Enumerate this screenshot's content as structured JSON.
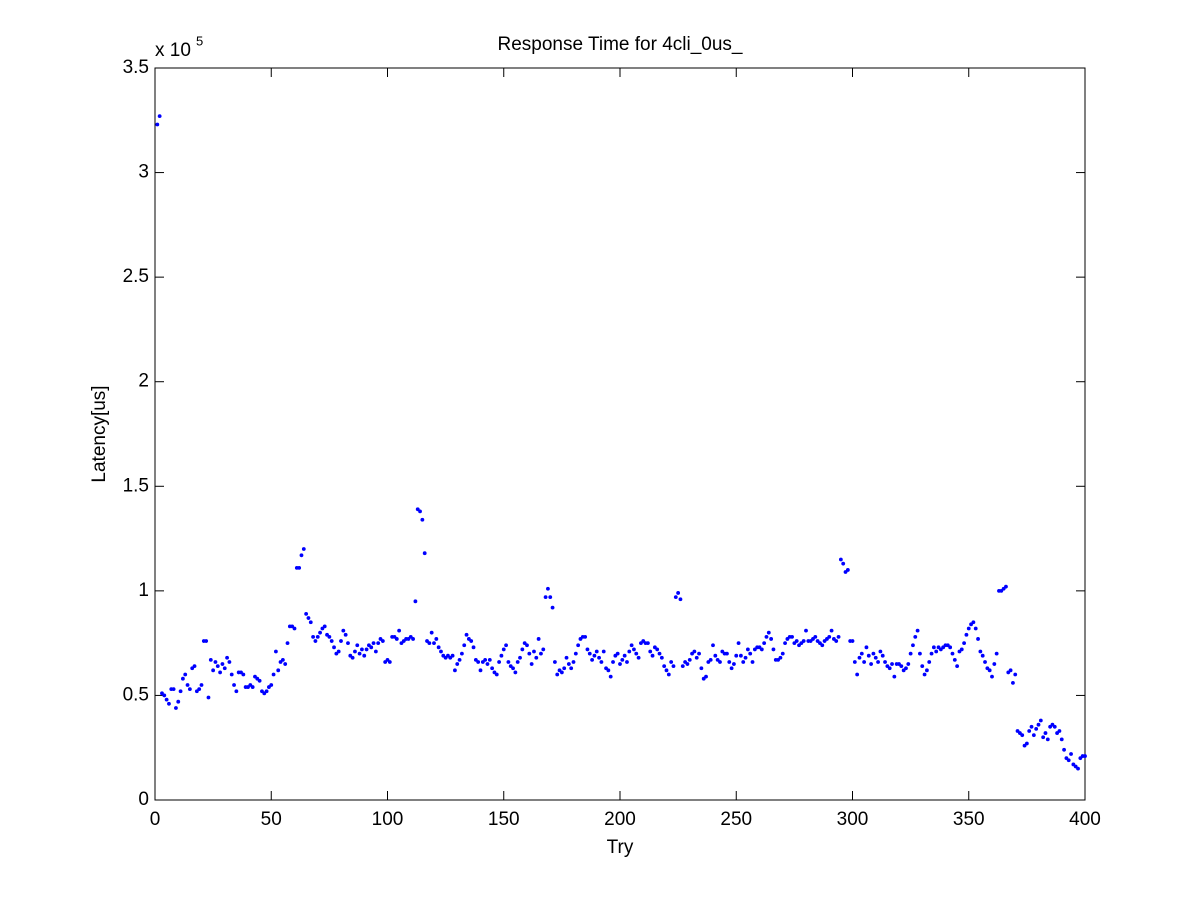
{
  "chart_data": {
    "type": "scatter",
    "title": "Response Time for 4cli_0us_",
    "x_label": "Try",
    "y_label": "Latency[us]",
    "y_scale_label": "x 10",
    "y_scale_exponent": "5",
    "xlim": [
      0,
      400
    ],
    "xticks": [
      0,
      50,
      100,
      150,
      200,
      250,
      300,
      350,
      400
    ],
    "ylim": [
      0,
      3.5
    ],
    "yticks": [
      0,
      0.5,
      1,
      1.5,
      2,
      2.5,
      3,
      3.5
    ],
    "grid": false,
    "series": [
      {
        "color": "#0000ff",
        "x": [
          1,
          2,
          3,
          4,
          5,
          6,
          7,
          8,
          9,
          10,
          11,
          12,
          13,
          14,
          15,
          16,
          17,
          18,
          19,
          20,
          21,
          22,
          23,
          24,
          25,
          26,
          27,
          28,
          29,
          30,
          31,
          32,
          33,
          34,
          35,
          36,
          37,
          38,
          39,
          40,
          41,
          42,
          43,
          44,
          45,
          46,
          47,
          48,
          49,
          50,
          51,
          52,
          53,
          54,
          55,
          56,
          57,
          58,
          59,
          60,
          61,
          62,
          63,
          64,
          65,
          66,
          67,
          68,
          69,
          70,
          71,
          72,
          73,
          74,
          75,
          76,
          77,
          78,
          79,
          80,
          81,
          82,
          83,
          84,
          85,
          86,
          87,
          88,
          89,
          90,
          91,
          92,
          93,
          94,
          95,
          96,
          97,
          98,
          99,
          100,
          101,
          102,
          103,
          104,
          105,
          106,
          107,
          108,
          109,
          110,
          111,
          112,
          113,
          114,
          115,
          116,
          117,
          118,
          119,
          120,
          121,
          122,
          123,
          124,
          125,
          126,
          127,
          128,
          129,
          130,
          131,
          132,
          133,
          134,
          135,
          136,
          137,
          138,
          139,
          140,
          141,
          142,
          143,
          144,
          145,
          146,
          147,
          148,
          149,
          150,
          151,
          152,
          153,
          154,
          155,
          156,
          157,
          158,
          159,
          160,
          161,
          162,
          163,
          164,
          165,
          166,
          167,
          168,
          169,
          170,
          171,
          172,
          173,
          174,
          175,
          176,
          177,
          178,
          179,
          180,
          181,
          182,
          183,
          184,
          185,
          186,
          187,
          188,
          189,
          190,
          191,
          192,
          193,
          194,
          195,
          196,
          197,
          198,
          199,
          200,
          201,
          202,
          203,
          204,
          205,
          206,
          207,
          208,
          209,
          210,
          211,
          212,
          213,
          214,
          215,
          216,
          217,
          218,
          219,
          220,
          221,
          222,
          223,
          224,
          225,
          226,
          227,
          228,
          229,
          230,
          231,
          232,
          233,
          234,
          235,
          236,
          237,
          238,
          239,
          240,
          241,
          242,
          243,
          244,
          245,
          246,
          247,
          248,
          249,
          250,
          251,
          252,
          253,
          254,
          255,
          256,
          257,
          258,
          259,
          260,
          261,
          262,
          263,
          264,
          265,
          266,
          267,
          268,
          269,
          270,
          271,
          272,
          273,
          274,
          275,
          276,
          277,
          278,
          279,
          280,
          281,
          282,
          283,
          284,
          285,
          286,
          287,
          288,
          289,
          290,
          291,
          292,
          293,
          294,
          295,
          296,
          297,
          298,
          299,
          300,
          301,
          302,
          303,
          304,
          305,
          306,
          307,
          308,
          309,
          310,
          311,
          312,
          313,
          314,
          315,
          316,
          317,
          318,
          319,
          320,
          321,
          322,
          323,
          324,
          325,
          326,
          327,
          328,
          329,
          330,
          331,
          332,
          333,
          334,
          335,
          336,
          337,
          338,
          339,
          340,
          341,
          342,
          343,
          344,
          345,
          346,
          347,
          348,
          349,
          350,
          351,
          352,
          353,
          354,
          355,
          356,
          357,
          358,
          359,
          360,
          361,
          362,
          363,
          364,
          365,
          366,
          367,
          368,
          369,
          370,
          371,
          372,
          373,
          374,
          375,
          376,
          377,
          378,
          379,
          380,
          381,
          382,
          383,
          384,
          385,
          386,
          387,
          388,
          389,
          390,
          391,
          392,
          393,
          394,
          395,
          396,
          397,
          398,
          399,
          400
        ],
        "values": [
          3.23,
          3.27,
          0.51,
          0.5,
          0.48,
          0.46,
          0.53,
          0.53,
          0.44,
          0.47,
          0.52,
          0.58,
          0.6,
          0.55,
          0.53,
          0.63,
          0.64,
          0.52,
          0.53,
          0.55,
          0.76,
          0.76,
          0.49,
          0.67,
          0.62,
          0.66,
          0.64,
          0.61,
          0.65,
          0.63,
          0.68,
          0.66,
          0.6,
          0.55,
          0.52,
          0.61,
          0.61,
          0.6,
          0.54,
          0.54,
          0.55,
          0.54,
          0.59,
          0.58,
          0.57,
          0.52,
          0.51,
          0.52,
          0.54,
          0.55,
          0.6,
          0.71,
          0.62,
          0.66,
          0.67,
          0.65,
          0.75,
          0.83,
          0.83,
          0.82,
          1.11,
          1.11,
          1.17,
          1.2,
          0.89,
          0.87,
          0.85,
          0.78,
          0.76,
          0.78,
          0.8,
          0.82,
          0.83,
          0.79,
          0.78,
          0.76,
          0.73,
          0.7,
          0.71,
          0.76,
          0.81,
          0.79,
          0.75,
          0.69,
          0.68,
          0.71,
          0.74,
          0.7,
          0.72,
          0.69,
          0.72,
          0.74,
          0.73,
          0.75,
          0.71,
          0.75,
          0.77,
          0.76,
          0.66,
          0.67,
          0.66,
          0.78,
          0.78,
          0.77,
          0.81,
          0.75,
          0.76,
          0.77,
          0.77,
          0.78,
          0.77,
          0.95,
          1.39,
          1.38,
          1.34,
          1.18,
          0.76,
          0.75,
          0.8,
          0.75,
          0.77,
          0.73,
          0.71,
          0.69,
          0.68,
          0.69,
          0.68,
          0.69,
          0.62,
          0.65,
          0.67,
          0.7,
          0.74,
          0.79,
          0.77,
          0.76,
          0.73,
          0.67,
          0.66,
          0.62,
          0.66,
          0.67,
          0.65,
          0.67,
          0.63,
          0.61,
          0.6,
          0.66,
          0.69,
          0.72,
          0.74,
          0.66,
          0.64,
          0.63,
          0.61,
          0.66,
          0.68,
          0.72,
          0.75,
          0.74,
          0.7,
          0.65,
          0.71,
          0.68,
          0.77,
          0.7,
          0.72,
          0.97,
          1.01,
          0.97,
          0.92,
          0.66,
          0.6,
          0.62,
          0.61,
          0.63,
          0.68,
          0.65,
          0.63,
          0.66,
          0.7,
          0.74,
          0.77,
          0.78,
          0.78,
          0.72,
          0.7,
          0.67,
          0.69,
          0.71,
          0.68,
          0.66,
          0.71,
          0.63,
          0.62,
          0.59,
          0.66,
          0.69,
          0.7,
          0.65,
          0.67,
          0.69,
          0.66,
          0.71,
          0.74,
          0.72,
          0.7,
          0.68,
          0.75,
          0.76,
          0.75,
          0.75,
          0.71,
          0.69,
          0.73,
          0.72,
          0.7,
          0.68,
          0.64,
          0.62,
          0.6,
          0.66,
          0.64,
          0.97,
          0.99,
          0.96,
          0.64,
          0.66,
          0.65,
          0.67,
          0.7,
          0.71,
          0.68,
          0.7,
          0.63,
          0.58,
          0.59,
          0.66,
          0.67,
          0.74,
          0.69,
          0.67,
          0.66,
          0.71,
          0.7,
          0.7,
          0.66,
          0.63,
          0.65,
          0.69,
          0.75,
          0.69,
          0.66,
          0.68,
          0.72,
          0.7,
          0.66,
          0.72,
          0.73,
          0.73,
          0.72,
          0.75,
          0.78,
          0.8,
          0.77,
          0.72,
          0.67,
          0.67,
          0.68,
          0.7,
          0.75,
          0.77,
          0.78,
          0.78,
          0.75,
          0.76,
          0.74,
          0.75,
          0.76,
          0.81,
          0.76,
          0.76,
          0.77,
          0.78,
          0.76,
          0.75,
          0.74,
          0.76,
          0.77,
          0.78,
          0.81,
          0.77,
          0.76,
          0.78,
          1.15,
          1.13,
          1.09,
          1.1,
          0.76,
          0.76,
          0.66,
          0.6,
          0.68,
          0.7,
          0.66,
          0.73,
          0.69,
          0.65,
          0.7,
          0.68,
          0.66,
          0.71,
          0.69,
          0.66,
          0.64,
          0.63,
          0.65,
          0.59,
          0.65,
          0.65,
          0.64,
          0.62,
          0.63,
          0.65,
          0.7,
          0.74,
          0.78,
          0.81,
          0.7,
          0.64,
          0.6,
          0.62,
          0.66,
          0.7,
          0.73,
          0.71,
          0.73,
          0.72,
          0.73,
          0.74,
          0.74,
          0.73,
          0.7,
          0.67,
          0.64,
          0.71,
          0.72,
          0.75,
          0.79,
          0.82,
          0.84,
          0.85,
          0.82,
          0.77,
          0.71,
          0.69,
          0.66,
          0.63,
          0.62,
          0.59,
          0.65,
          0.7,
          1.0,
          1.0,
          1.01,
          1.02,
          0.61,
          0.62,
          0.56,
          0.6,
          0.33,
          0.32,
          0.31,
          0.26,
          0.27,
          0.33,
          0.35,
          0.31,
          0.34,
          0.36,
          0.38,
          0.3,
          0.32,
          0.29,
          0.35,
          0.36,
          0.35,
          0.32,
          0.33,
          0.29,
          0.24,
          0.2,
          0.19,
          0.22,
          0.17,
          0.16,
          0.15,
          0.2,
          0.21,
          0.21
        ]
      }
    ]
  }
}
